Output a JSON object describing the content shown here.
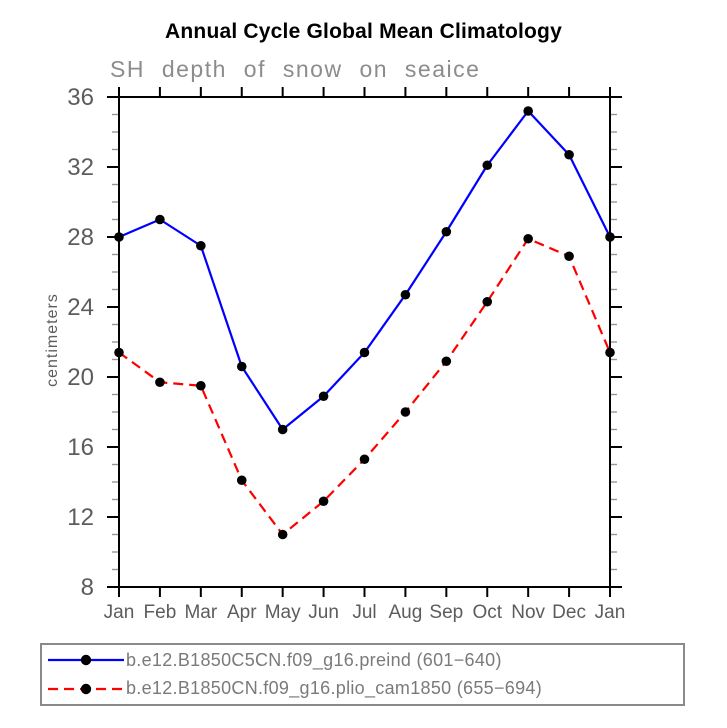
{
  "chart_data": {
    "type": "line",
    "title": "Annual Cycle Global Mean Climatology",
    "subtitle": "SH depth of snow on seaice",
    "ylabel": "centimeters",
    "ylim": [
      8,
      36
    ],
    "ytick_step_major": 4,
    "ytick_step_minor": 1,
    "categories": [
      "Jan",
      "Feb",
      "Mar",
      "Apr",
      "May",
      "Jun",
      "Jul",
      "Aug",
      "Sep",
      "Oct",
      "Nov",
      "Dec",
      "Jan"
    ],
    "series": [
      {
        "name": "b.e12.B1850C5CN.f09_g16.preind (601−640)",
        "color": "#0000ff",
        "line_style": "solid",
        "marker": "filled-circle",
        "marker_color": "#000000",
        "values": [
          28.0,
          29.0,
          27.5,
          20.6,
          17.0,
          18.9,
          21.4,
          24.7,
          28.3,
          32.1,
          35.2,
          32.7,
          28.0
        ]
      },
      {
        "name": "b.e12.B1850CN.f09_g16.plio_cam1850 (655−694)",
        "color": "#ff0000",
        "line_style": "dashed",
        "marker": "filled-circle",
        "marker_color": "#000000",
        "values": [
          21.4,
          19.7,
          19.5,
          14.1,
          11.0,
          12.9,
          15.3,
          18.0,
          20.9,
          24.3,
          27.9,
          26.9,
          21.4
        ]
      }
    ],
    "legend_position": "bottom",
    "grid": false
  },
  "colors": {
    "axis": "#000000",
    "tick_label": "#5c5c5c",
    "minor_tick": "#969696",
    "subtitle": "#8c8c8c",
    "legend_text": "#7a7a7a",
    "legend_border": "#8a8a8a"
  }
}
